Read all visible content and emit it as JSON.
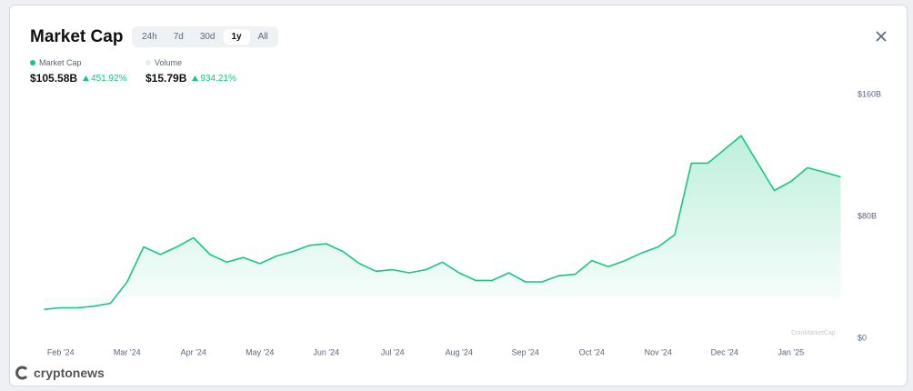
{
  "header": {
    "title": "Market Cap",
    "tabs": [
      "24h",
      "7d",
      "30d",
      "1y",
      "All"
    ]
  },
  "stats": [
    {
      "label": "Market Cap",
      "value": "$105.58B",
      "change": "451.92%"
    },
    {
      "label": "Volume",
      "value": "$15.79B",
      "change": "934.21%"
    }
  ],
  "watermark": "CoinMarketCap",
  "brand": "cryptonews",
  "chart_data": {
    "type": "area",
    "categories": [
      null,
      "Feb '24",
      null,
      null,
      null,
      "Mar '24",
      null,
      null,
      null,
      "Apr '24",
      null,
      null,
      null,
      "May '24",
      null,
      null,
      null,
      "Jun '24",
      null,
      null,
      null,
      "Jul '24",
      null,
      null,
      null,
      "Aug '24",
      null,
      null,
      null,
      "Sep '24",
      null,
      null,
      null,
      "Oct '24",
      null,
      null,
      null,
      "Nov '24",
      null,
      null,
      null,
      "Dec '24",
      null,
      null,
      null,
      "Jan '25",
      null,
      null,
      null
    ],
    "series": [
      {
        "name": "Market Cap",
        "color": "#16c784",
        "values": [
          19,
          20,
          20,
          21,
          23,
          37,
          60,
          55,
          60,
          66,
          55,
          50,
          53,
          49,
          54,
          57,
          61,
          62,
          57,
          49,
          44,
          45,
          43,
          45,
          50,
          43,
          38,
          38,
          43,
          37,
          37,
          41,
          42,
          51,
          47,
          51,
          56,
          60,
          68,
          115,
          115,
          124,
          133,
          115,
          97,
          103,
          112,
          109,
          106
        ]
      }
    ],
    "ylim": [
      0,
      160
    ],
    "yticks": [
      {
        "value": 0,
        "label": "$0"
      },
      {
        "value": 80,
        "label": "$80B"
      },
      {
        "value": 160,
        "label": "$160B"
      }
    ],
    "grid": false
  }
}
